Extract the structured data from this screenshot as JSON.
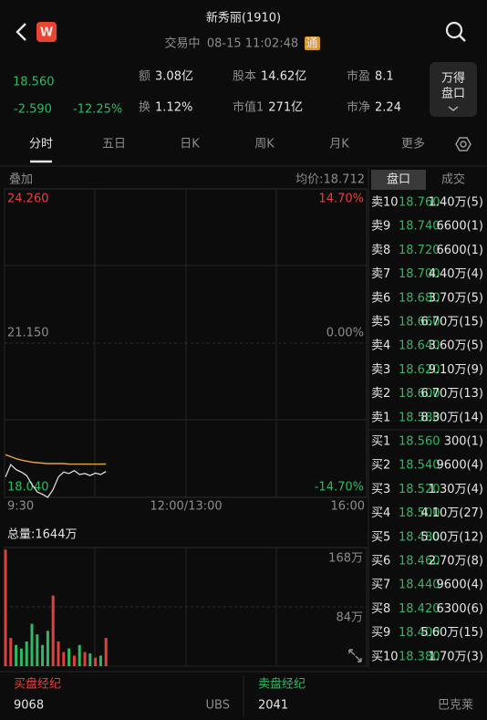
{
  "header": {
    "title": "新秀丽(1910)",
    "status": "交易中",
    "time": "08-15 11:02:48",
    "badge": "通",
    "logo": "W"
  },
  "quote": {
    "price": "18.560",
    "change": "-2.590",
    "change_pct": "-12.25%",
    "stats": [
      {
        "label": "额",
        "value": "3.08亿"
      },
      {
        "label": "股本",
        "value": "14.62亿"
      },
      {
        "label": "市盈",
        "value": "8.1"
      },
      {
        "label": "换",
        "value": "1.12%"
      },
      {
        "label": "市值1",
        "value": "271亿"
      },
      {
        "label": "市净",
        "value": "2.24"
      }
    ],
    "button": [
      "万得",
      "盘口"
    ]
  },
  "tabs": [
    "分时",
    "五日",
    "日K",
    "周K",
    "月K",
    "更多"
  ],
  "intraday": {
    "overlay_label": "叠加",
    "avg_label": "均价:18.712",
    "ylim": [
      18.04,
      24.26
    ],
    "yticks": [
      {
        "value": 24.26,
        "label": "24.260"
      },
      {
        "value": 21.15,
        "label": "21.150"
      },
      {
        "value": 18.04,
        "label": "18.040"
      }
    ],
    "pct_labels": [
      "14.70%",
      "0.00%",
      "-14.70%"
    ],
    "time_labels": [
      "9:30",
      "12:00/13:00",
      "16:00"
    ],
    "price": [
      18.45,
      18.7,
      18.6,
      18.55,
      18.48,
      18.3,
      18.15,
      18.1,
      18.04,
      18.2,
      18.45,
      18.55,
      18.52,
      18.58,
      18.5,
      18.52,
      18.48,
      18.53,
      18.5,
      18.56
    ],
    "avg": [
      18.9,
      18.86,
      18.82,
      18.79,
      18.77,
      18.75,
      18.74,
      18.73,
      18.72,
      18.72,
      18.72,
      18.72,
      18.71,
      18.71,
      18.71,
      18.71,
      18.71,
      18.71,
      18.71,
      18.712
    ],
    "volume_label": "总量:1644万",
    "volume_ylim": [
      0,
      168
    ],
    "volume_ticks": [
      {
        "value": 168,
        "label": "168万"
      },
      {
        "value": 84,
        "label": "84万"
      }
    ],
    "volume": [
      165,
      40,
      30,
      25,
      35,
      60,
      45,
      30,
      50,
      100,
      35,
      20,
      25,
      15,
      30,
      20,
      18,
      12,
      15,
      40
    ]
  },
  "order_book": {
    "tabs": [
      "盘口",
      "成交"
    ],
    "asks": [
      {
        "level": "卖10",
        "price": "18.760",
        "volume": "1.40万(5)"
      },
      {
        "level": "卖9",
        "price": "18.740",
        "volume": "6600(1)"
      },
      {
        "level": "卖8",
        "price": "18.720",
        "volume": "6600(1)"
      },
      {
        "level": "卖7",
        "price": "18.700",
        "volume": "4.40万(4)"
      },
      {
        "level": "卖6",
        "price": "18.680",
        "volume": "3.70万(5)"
      },
      {
        "level": "卖5",
        "price": "18.660",
        "volume": "6.70万(15)"
      },
      {
        "level": "卖4",
        "price": "18.640",
        "volume": "3.60万(5)"
      },
      {
        "level": "卖3",
        "price": "18.620",
        "volume": "9.10万(9)"
      },
      {
        "level": "卖2",
        "price": "18.600",
        "volume": "6.70万(13)"
      },
      {
        "level": "卖1",
        "price": "18.580",
        "volume": "8.30万(14)"
      }
    ],
    "bids": [
      {
        "level": "买1",
        "price": "18.560",
        "volume": "300(1)"
      },
      {
        "level": "买2",
        "price": "18.540",
        "volume": "9600(4)"
      },
      {
        "level": "买3",
        "price": "18.520",
        "volume": "1.30万(4)"
      },
      {
        "level": "买4",
        "price": "18.500",
        "volume": "4.10万(27)"
      },
      {
        "level": "买5",
        "price": "18.480",
        "volume": "5.00万(12)"
      },
      {
        "level": "买6",
        "price": "18.460",
        "volume": "2.70万(8)"
      },
      {
        "level": "买7",
        "price": "18.440",
        "volume": "9600(4)"
      },
      {
        "level": "买8",
        "price": "18.420",
        "volume": "6300(6)"
      },
      {
        "level": "买9",
        "price": "18.400",
        "volume": "5.60万(15)"
      },
      {
        "level": "买10",
        "price": "18.380",
        "volume": "1.70万(3)"
      }
    ]
  },
  "brokers": {
    "buy": {
      "title": "买盘经纪",
      "code": "9068",
      "name": "UBS"
    },
    "sell": {
      "title": "卖盘经纪",
      "code": "2041",
      "name": "巴克莱"
    }
  }
}
